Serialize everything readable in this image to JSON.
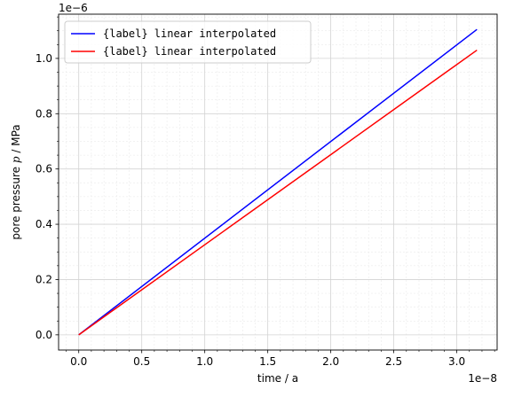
{
  "chart_data": {
    "type": "line",
    "xlabel": "time / a",
    "ylabel_prefix": "pore pressure ",
    "ylabel_italic": "p",
    "ylabel_suffix": " / MPa",
    "x_offset_text": "1e−8",
    "y_offset_text": "1e−6",
    "x_scale": 1e-08,
    "y_scale": 1e-06,
    "xlim": [
      -0.16,
      3.32
    ],
    "ylim": [
      -0.055,
      1.16
    ],
    "x_ticks": [
      0.0,
      0.5,
      1.0,
      1.5,
      2.0,
      2.5,
      3.0
    ],
    "x_tick_labels": [
      "0.0",
      "0.5",
      "1.0",
      "1.5",
      "2.0",
      "2.5",
      "3.0"
    ],
    "y_ticks": [
      0.0,
      0.2,
      0.4,
      0.6,
      0.8,
      1.0
    ],
    "y_tick_labels": [
      "0.0",
      "0.2",
      "0.4",
      "0.6",
      "0.8",
      "1.0"
    ],
    "grid": true,
    "minor_grid": true,
    "legend_position": "top-left",
    "series": [
      {
        "name": "{label} linear interpolated",
        "color": "#0000ff",
        "x": [
          0.0,
          3.16
        ],
        "y": [
          0.0,
          1.105
        ]
      },
      {
        "name": "{label} linear interpolated",
        "color": "#ff0000",
        "x": [
          0.0,
          3.16
        ],
        "y": [
          0.0,
          1.03
        ]
      }
    ]
  }
}
